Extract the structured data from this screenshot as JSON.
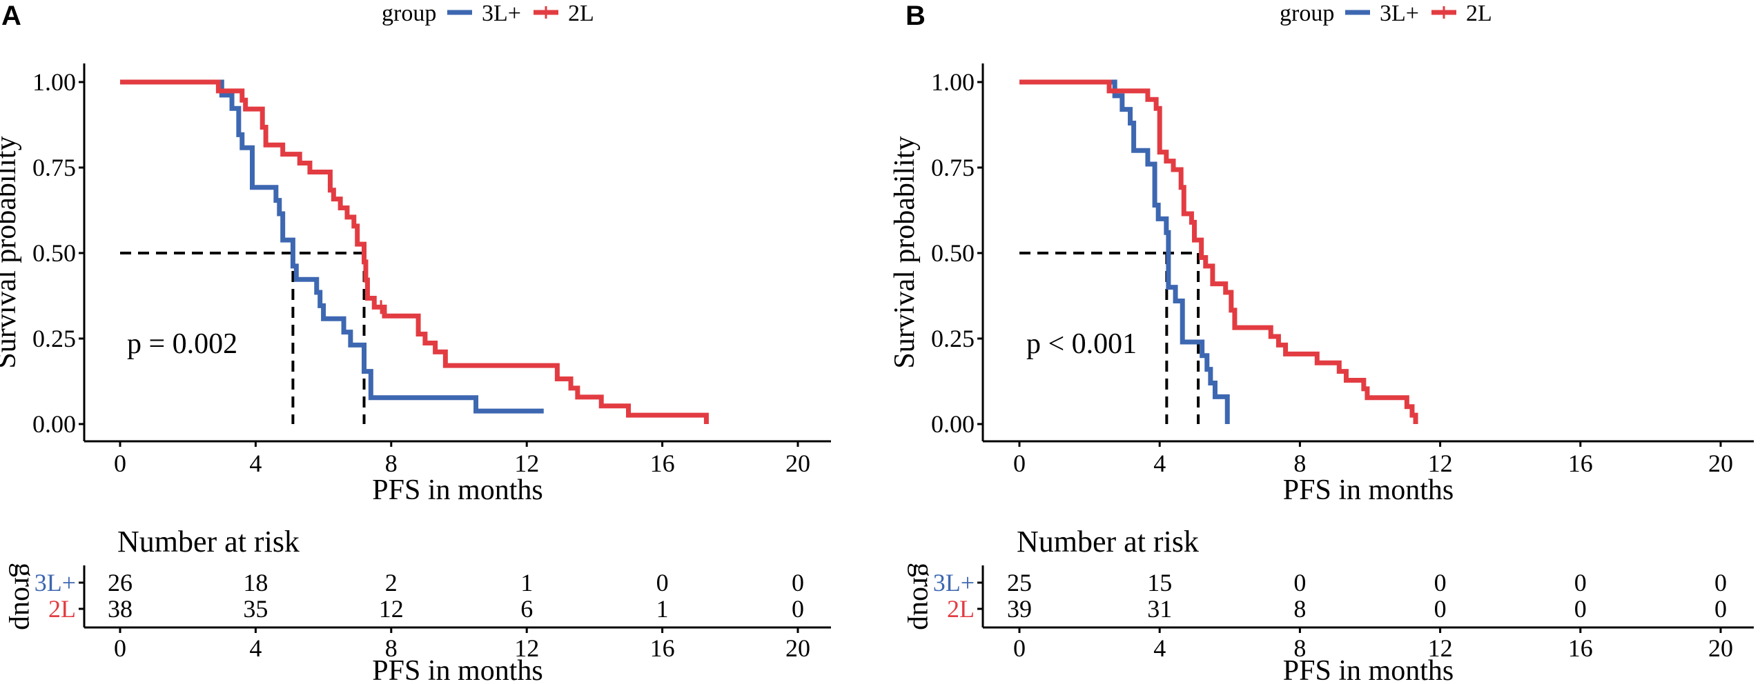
{
  "colors": {
    "group_3L": "#3d67b1",
    "group_2L": "#e23c42",
    "axis": "#000000"
  },
  "chart_data": [
    {
      "panel": "A",
      "type": "line",
      "subtype": "kaplan-meier step",
      "xlabel": "PFS in months",
      "ylabel": "Survival probability",
      "xlim": [
        0,
        20
      ],
      "ylim": [
        0,
        1
      ],
      "xticks": [
        "0",
        "4",
        "8",
        "12",
        "16",
        "20"
      ],
      "yticks": [
        "0.00",
        "0.25",
        "0.50",
        "0.75",
        "1.00"
      ],
      "legend": {
        "title": "group",
        "position": "top",
        "entries": [
          "3L+",
          "2L"
        ]
      },
      "annotation": "p = 0.002",
      "medians": [
        5.1,
        7.2
      ],
      "series": [
        {
          "name": "3L+",
          "end": 12.5,
          "censored": [],
          "steps": [
            [
              0,
              1
            ],
            [
              3.0,
              0.962
            ],
            [
              3.3,
              0.923
            ],
            [
              3.5,
              0.846
            ],
            [
              3.6,
              0.808
            ],
            [
              3.9,
              0.692
            ],
            [
              4.6,
              0.654
            ],
            [
              4.7,
              0.615
            ],
            [
              4.8,
              0.538
            ],
            [
              5.1,
              0.462
            ],
            [
              5.2,
              0.423
            ],
            [
              5.8,
              0.385
            ],
            [
              5.9,
              0.346
            ],
            [
              6.0,
              0.308
            ],
            [
              6.6,
              0.269
            ],
            [
              6.8,
              0.231
            ],
            [
              7.2,
              0.154
            ],
            [
              7.4,
              0.077
            ],
            [
              10.5,
              0.038
            ]
          ]
        },
        {
          "name": "2L",
          "end": 17.3,
          "censored": [
            [
              7.7,
              0.342
            ]
          ],
          "steps": [
            [
              0,
              1
            ],
            [
              2.9,
              0.974
            ],
            [
              3.6,
              0.947
            ],
            [
              3.7,
              0.921
            ],
            [
              4.2,
              0.868
            ],
            [
              4.3,
              0.816
            ],
            [
              4.8,
              0.789
            ],
            [
              5.3,
              0.763
            ],
            [
              5.6,
              0.737
            ],
            [
              6.2,
              0.684
            ],
            [
              6.3,
              0.658
            ],
            [
              6.5,
              0.632
            ],
            [
              6.7,
              0.605
            ],
            [
              6.9,
              0.579
            ],
            [
              7.0,
              0.526
            ],
            [
              7.2,
              0.474
            ],
            [
              7.25,
              0.421
            ],
            [
              7.3,
              0.368
            ],
            [
              7.5,
              0.342
            ],
            [
              7.8,
              0.316
            ],
            [
              8.8,
              0.263
            ],
            [
              9.0,
              0.237
            ],
            [
              9.3,
              0.211
            ],
            [
              9.6,
              0.171
            ],
            [
              12.9,
              0.132
            ],
            [
              13.3,
              0.105
            ],
            [
              13.5,
              0.079
            ],
            [
              14.2,
              0.053
            ],
            [
              15.0,
              0.026
            ],
            [
              17.3,
              0
            ]
          ]
        }
      ],
      "risk_table": {
        "title": "Number at risk",
        "ylabel": "group",
        "xlabel": "PFS in months",
        "times": [
          "0",
          "4",
          "8",
          "12",
          "16",
          "20"
        ],
        "rows": [
          {
            "name": "3L+",
            "values": [
              "26",
              "18",
              "2",
              "1",
              "0",
              "0"
            ]
          },
          {
            "name": "2L",
            "values": [
              "38",
              "35",
              "12",
              "6",
              "1",
              "0"
            ]
          }
        ]
      }
    },
    {
      "panel": "B",
      "type": "line",
      "subtype": "kaplan-meier step",
      "xlabel": "PFS in months",
      "ylabel": "Survival probability",
      "xlim": [
        0,
        20
      ],
      "ylim": [
        0,
        1
      ],
      "xticks": [
        "0",
        "4",
        "8",
        "12",
        "16",
        "20"
      ],
      "yticks": [
        "0.00",
        "0.25",
        "0.50",
        "0.75",
        "1.00"
      ],
      "legend": {
        "title": "group",
        "position": "top",
        "entries": [
          "3L+",
          "2L"
        ]
      },
      "annotation": "p < 0.001",
      "medians": [
        4.2,
        5.1
      ],
      "series": [
        {
          "name": "3L+",
          "end": 5.93,
          "censored": [],
          "steps": [
            [
              0,
              1
            ],
            [
              2.72,
              0.96
            ],
            [
              2.93,
              0.92
            ],
            [
              3.16,
              0.88
            ],
            [
              3.26,
              0.8
            ],
            [
              3.66,
              0.76
            ],
            [
              3.86,
              0.64
            ],
            [
              3.96,
              0.6
            ],
            [
              4.19,
              0.56
            ],
            [
              4.25,
              0.4
            ],
            [
              4.45,
              0.36
            ],
            [
              4.65,
              0.24
            ],
            [
              5.21,
              0.2
            ],
            [
              5.35,
              0.16
            ],
            [
              5.45,
              0.12
            ],
            [
              5.58,
              0.08
            ],
            [
              5.93,
              0
            ]
          ]
        },
        {
          "name": "2L",
          "end": 11.3,
          "censored": [],
          "steps": [
            [
              0,
              1
            ],
            [
              2.56,
              0.974
            ],
            [
              3.66,
              0.949
            ],
            [
              3.9,
              0.923
            ],
            [
              4.0,
              0.795
            ],
            [
              4.19,
              0.769
            ],
            [
              4.39,
              0.744
            ],
            [
              4.61,
              0.692
            ],
            [
              4.69,
              0.615
            ],
            [
              4.91,
              0.59
            ],
            [
              4.99,
              0.538
            ],
            [
              5.19,
              0.487
            ],
            [
              5.31,
              0.462
            ],
            [
              5.51,
              0.41
            ],
            [
              5.88,
              0.385
            ],
            [
              6.04,
              0.333
            ],
            [
              6.14,
              0.282
            ],
            [
              7.17,
              0.256
            ],
            [
              7.39,
              0.231
            ],
            [
              7.59,
              0.205
            ],
            [
              8.49,
              0.179
            ],
            [
              9.12,
              0.154
            ],
            [
              9.32,
              0.128
            ],
            [
              9.82,
              0.103
            ],
            [
              9.92,
              0.077
            ],
            [
              11.05,
              0.051
            ],
            [
              11.2,
              0.026
            ],
            [
              11.3,
              0
            ]
          ]
        }
      ],
      "risk_table": {
        "title": "Number at risk",
        "ylabel": "group",
        "xlabel": "PFS in months",
        "times": [
          "0",
          "4",
          "8",
          "12",
          "16",
          "20"
        ],
        "rows": [
          {
            "name": "3L+",
            "values": [
              "25",
              "15",
              "0",
              "0",
              "0",
              "0"
            ]
          },
          {
            "name": "2L",
            "values": [
              "39",
              "31",
              "8",
              "0",
              "0",
              "0"
            ]
          }
        ]
      }
    }
  ]
}
